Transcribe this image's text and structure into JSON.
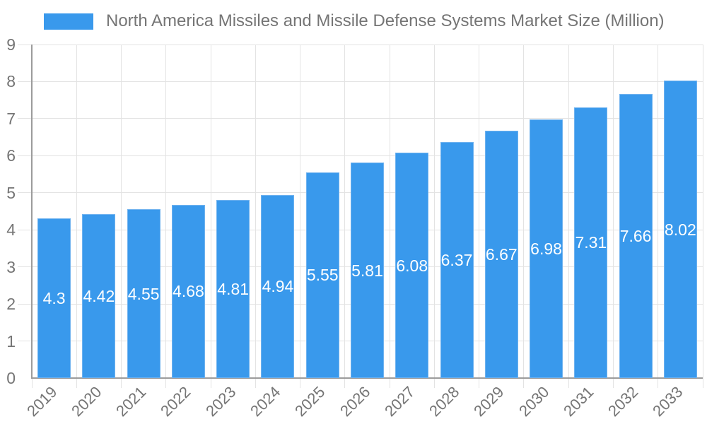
{
  "chart_data": {
    "type": "bar",
    "title": "North America Missiles and Missile Defense Systems Market Size (Million)",
    "categories": [
      "2019",
      "2020",
      "2021",
      "2022",
      "2023",
      "2024",
      "2025",
      "2026",
      "2027",
      "2028",
      "2029",
      "2030",
      "2031",
      "2032",
      "2033"
    ],
    "values": [
      4.3,
      4.42,
      4.55,
      4.68,
      4.81,
      4.94,
      5.55,
      5.81,
      6.08,
      6.37,
      6.67,
      6.98,
      7.31,
      7.66,
      8.02
    ],
    "xlabel": "",
    "ylabel": "",
    "ylim": [
      0,
      9
    ],
    "y_ticks": [
      0,
      1,
      2,
      3,
      4,
      5,
      6,
      7,
      8,
      9
    ],
    "grid": true,
    "legend_position": "top",
    "value_labels_inside_bars": true
  },
  "colors": {
    "bar_fill": "#3999ec",
    "bar_edge": "#6fb2ef",
    "grid": "#e3e3e3",
    "axis": "#9c9c9c",
    "tick_label": "#757575",
    "value_label": "#ffffff",
    "background": "#ffffff"
  }
}
